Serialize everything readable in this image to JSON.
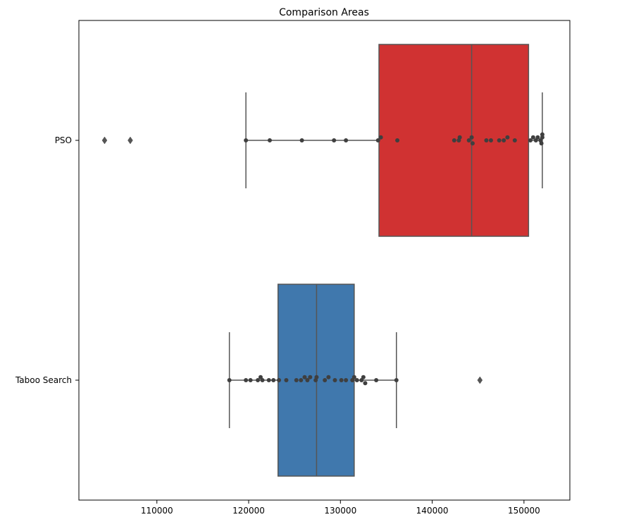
{
  "chart_data": {
    "type": "boxplot",
    "orientation": "horizontal",
    "title": "Comparison Areas",
    "xlabel": "",
    "ylabel": "",
    "xlim": [
      101500,
      155000
    ],
    "xticks": [
      110000,
      120000,
      130000,
      140000,
      150000
    ],
    "xtick_labels": [
      "110000",
      "120000",
      "130000",
      "140000",
      "150000"
    ],
    "grid": false,
    "categories": [
      "PSO",
      "Taboo Search"
    ],
    "series": [
      {
        "name": "PSO",
        "color": "#d03232",
        "box": {
          "whisker_low": 119700,
          "q1": 134200,
          "median": 144300,
          "q3": 150500,
          "whisker_high": 152000
        },
        "outliers": [
          104300,
          107100
        ],
        "points": [
          119700,
          122300,
          125800,
          129300,
          130600,
          134100,
          134400,
          136200,
          142400,
          142900,
          143000,
          144000,
          144300,
          144400,
          145900,
          146400,
          147300,
          147800,
          148200,
          149000,
          150700,
          151000,
          151300,
          151500,
          151800,
          151900,
          152000,
          152000
        ]
      },
      {
        "name": "Taboo Search",
        "color": "#4078ad",
        "box": {
          "whisker_low": 117900,
          "q1": 123200,
          "median": 127400,
          "q3": 131500,
          "whisker_high": 136100
        },
        "outliers": [
          145200
        ],
        "points": [
          117900,
          119700,
          120200,
          121000,
          121300,
          121500,
          122200,
          122700,
          123300,
          124100,
          125200,
          125700,
          126100,
          126400,
          126700,
          127300,
          127400,
          128300,
          128700,
          129400,
          130100,
          130600,
          131300,
          131500,
          131800,
          132300,
          132500,
          132700,
          133900,
          136100
        ]
      }
    ],
    "point_color": "#3f3f3f",
    "line_color": "#555555"
  }
}
